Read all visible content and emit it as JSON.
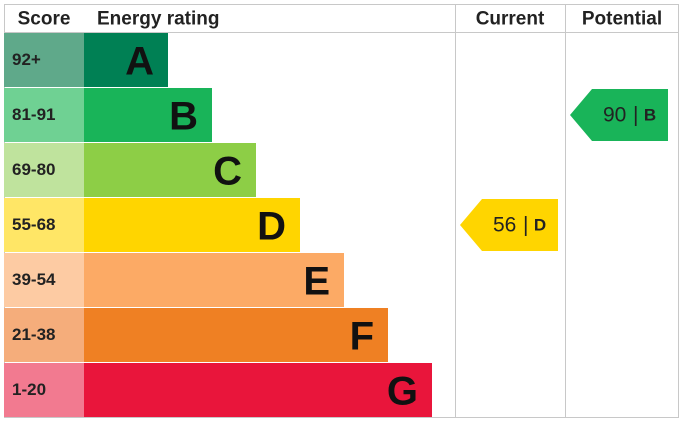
{
  "header": {
    "score": "Score",
    "rating": "Energy rating",
    "current": "Current",
    "potential": "Potential"
  },
  "bands": [
    {
      "score": "92+",
      "letter": "A",
      "color": "#008054",
      "score_color": "#5fa98a"
    },
    {
      "score": "81-91",
      "letter": "B",
      "color": "#19b459",
      "score_color": "#6fd193"
    },
    {
      "score": "69-80",
      "letter": "C",
      "color": "#8dce46",
      "score_color": "#bfe39d"
    },
    {
      "score": "55-68",
      "letter": "D",
      "color": "#ffd500",
      "score_color": "#ffe666"
    },
    {
      "score": "39-54",
      "letter": "E",
      "color": "#fcaa65",
      "score_color": "#fdcba3"
    },
    {
      "score": "21-38",
      "letter": "F",
      "color": "#ef8023",
      "score_color": "#f5ad7b"
    },
    {
      "score": "1-20",
      "letter": "G",
      "color": "#e9153b",
      "score_color": "#f27a90"
    }
  ],
  "current": {
    "value": 56,
    "separator": "|",
    "letter": "D"
  },
  "potential": {
    "value": 90,
    "separator": "|",
    "letter": "B"
  }
}
